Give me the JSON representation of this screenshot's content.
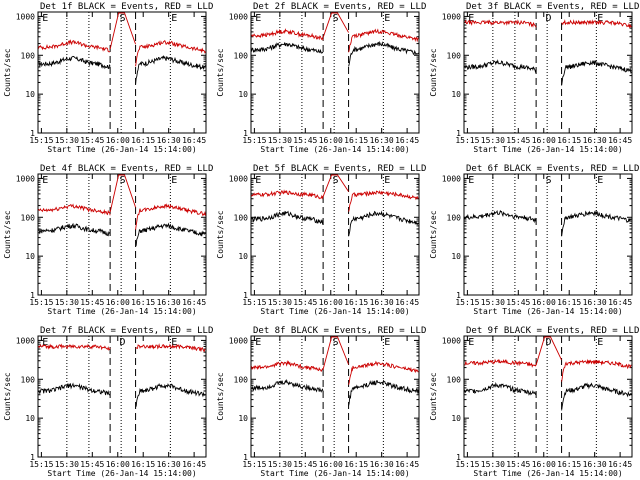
{
  "figure": {
    "common": {
      "xlabel": "Start Time (26-Jan-14 15:14:00)",
      "ylabel": "Counts/sec",
      "y_scale": "log",
      "ylim": [
        1,
        1300
      ],
      "y_ticks": [
        1,
        10,
        100,
        1000
      ],
      "y_tick_labels": [
        "1",
        "10",
        "100",
        "1000"
      ],
      "x_tick_labels": [
        "15:15",
        "15:30",
        "15:45",
        "16:00",
        "16:15",
        "16:30",
        "16:45"
      ],
      "xlim_minutes": [
        15,
        52
      ],
      "dotted_lines_minutes": [
        30,
        43,
        62,
        91
      ],
      "dashed_lines_minutes": [
        55.5,
        70.5
      ],
      "letters": [
        {
          "text": "E",
          "minute": 15.5
        },
        {
          "text": "S",
          "minute": 61
        },
        {
          "text": "E",
          "minute": 91.5
        }
      ],
      "colors": {
        "events": "#000000",
        "lld": "#cc0000",
        "axes": "#000000"
      }
    }
  },
  "chart_data": [
    {
      "type": "line",
      "title": "Det 1f BLACK = Events, RED = LLD",
      "letters": [
        "E",
        "S",
        "E"
      ],
      "series": [
        {
          "name": "Events",
          "level": 60,
          "bump": 1.4,
          "dip": true
        },
        {
          "name": "LLD",
          "level": 160,
          "bump": 1.35,
          "dip": true
        }
      ]
    },
    {
      "type": "line",
      "title": "Det 2f BLACK = Events, RED = LLD",
      "letters": [
        "E",
        "S",
        "E"
      ],
      "series": [
        {
          "name": "Events",
          "level": 140,
          "bump": 1.4,
          "dip": true
        },
        {
          "name": "LLD",
          "level": 320,
          "bump": 1.3,
          "dip": true
        }
      ]
    },
    {
      "type": "line",
      "title": "Det 3f BLACK = Events, RED = LLD",
      "letters": [
        "E",
        "D",
        "E"
      ],
      "series": [
        {
          "name": "Events",
          "level": 50,
          "bump": 1.3,
          "dip": true
        },
        {
          "name": "LLD",
          "level": 700,
          "bump": 1.0,
          "dip": false
        }
      ]
    },
    {
      "type": "line",
      "title": "Det 4f BLACK = Events, RED = LLD",
      "letters": [
        "E",
        "S",
        "E"
      ],
      "series": [
        {
          "name": "Events",
          "level": 45,
          "bump": 1.35,
          "dip": true
        },
        {
          "name": "LLD",
          "level": 150,
          "bump": 1.3,
          "dip": true
        }
      ]
    },
    {
      "type": "line",
      "title": "Det 5f BLACK = Events, RED = LLD",
      "letters": [
        "E",
        "S",
        "E"
      ],
      "series": [
        {
          "name": "Events",
          "level": 90,
          "bump": 1.4,
          "dip": true
        },
        {
          "name": "LLD",
          "level": 380,
          "bump": 1.15,
          "dip": true
        }
      ]
    },
    {
      "type": "line",
      "title": "Det 6f BLACK = Events, RED = LLD",
      "letters": [
        "E",
        "S",
        "E"
      ],
      "series": [
        {
          "name": "Events",
          "level": 100,
          "bump": 1.3,
          "dip": true
        }
      ]
    },
    {
      "type": "line",
      "title": "Det 7f BLACK = Events, RED = LLD",
      "letters": [
        "E",
        "D",
        "E"
      ],
      "series": [
        {
          "name": "Events",
          "level": 50,
          "bump": 1.4,
          "dip": true
        },
        {
          "name": "LLD",
          "level": 700,
          "bump": 1.0,
          "dip": false
        }
      ]
    },
    {
      "type": "line",
      "title": "Det 8f BLACK = Events, RED = LLD",
      "letters": [
        "E",
        "S",
        "E"
      ],
      "series": [
        {
          "name": "Events",
          "level": 60,
          "bump": 1.4,
          "dip": true
        },
        {
          "name": "LLD",
          "level": 200,
          "bump": 1.3,
          "dip": true
        }
      ]
    },
    {
      "type": "line",
      "title": "Det 9f BLACK = Events, RED = LLD",
      "letters": [
        "E",
        "D",
        "E"
      ],
      "series": [
        {
          "name": "Events",
          "level": 50,
          "bump": 1.4,
          "dip": true
        },
        {
          "name": "LLD",
          "level": 260,
          "bump": 1.1,
          "dip": true
        }
      ]
    }
  ]
}
